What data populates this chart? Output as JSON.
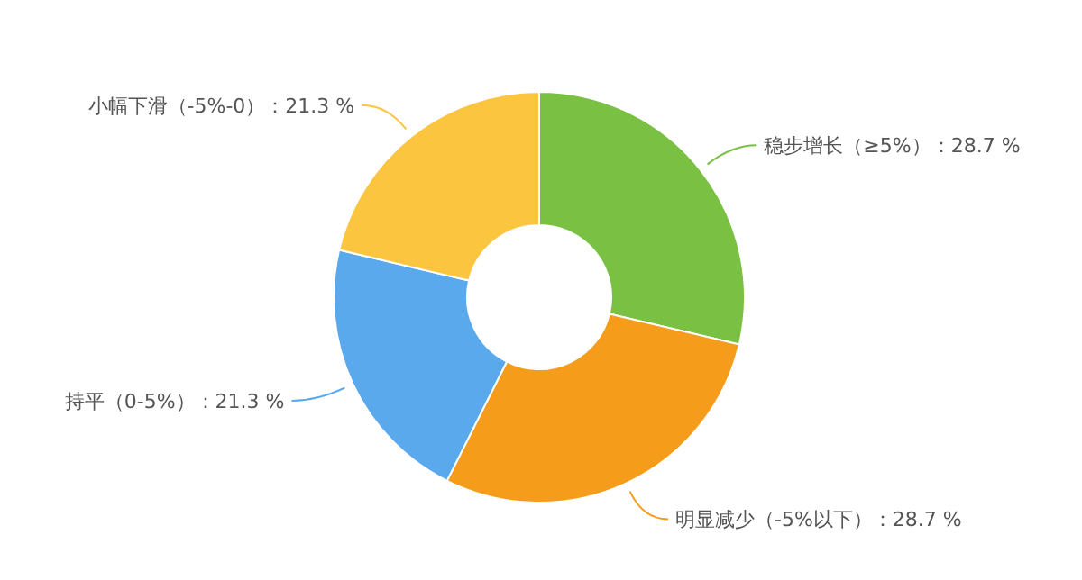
{
  "chart_data": {
    "type": "donut",
    "categories": [
      "稳步增长（≥5%）",
      "明显减少（-5%以下）",
      "持平（0-5%）",
      "小幅下滑（-5%-0）"
    ],
    "values": [
      28.7,
      28.7,
      21.3,
      21.3
    ],
    "value_labels": [
      "：28.7 %",
      "：28.7 %",
      "：21.3 %",
      "：21.3 %"
    ],
    "colors": [
      "#7ac143",
      "#f59c1a",
      "#5aa9ec",
      "#fbc540"
    ]
  }
}
